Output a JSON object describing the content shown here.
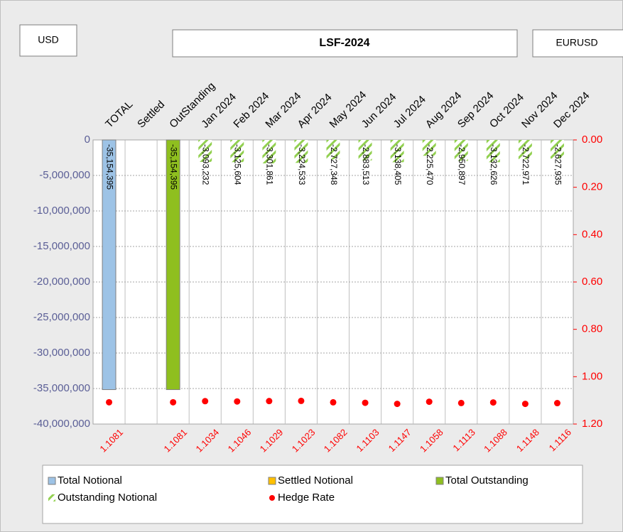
{
  "chart_data": {
    "type": "bar",
    "title": "LSF-2024",
    "annotations": [
      "USD",
      "EURUSD"
    ],
    "categories": [
      "TOTAL",
      "Settled",
      "OutStanding",
      "Jan 2024",
      "Feb 2024",
      "Mar 2024",
      "Apr 2024",
      "May 2024",
      "Jun 2024",
      "Jul 2024",
      "Aug 2024",
      "Sep 2024",
      "Oct 2024",
      "Nov 2024",
      "Dec 2024"
    ],
    "series": [
      {
        "name": "Total Notional",
        "type": "bar",
        "color": "#9dc3e6",
        "values": [
          -35154395,
          null,
          null,
          null,
          null,
          null,
          null,
          null,
          null,
          null,
          null,
          null,
          null,
          null,
          null
        ],
        "value_labels": [
          "-35,154,395",
          null,
          null,
          null,
          null,
          null,
          null,
          null,
          null,
          null,
          null,
          null,
          null,
          null,
          null
        ]
      },
      {
        "name": "Settled Notional",
        "type": "bar",
        "color": "#ffc000",
        "values": [
          null,
          null,
          null,
          null,
          null,
          null,
          null,
          null,
          null,
          null,
          null,
          null,
          null,
          null,
          null
        ]
      },
      {
        "name": "Total Outstanding",
        "type": "bar",
        "color": "#8fbf1f",
        "values": [
          null,
          null,
          -35154395,
          null,
          null,
          null,
          null,
          null,
          null,
          null,
          null,
          null,
          null,
          null,
          null
        ],
        "value_labels": [
          null,
          null,
          "-35,154,395",
          null,
          null,
          null,
          null,
          null,
          null,
          null,
          null,
          null,
          null,
          null,
          null
        ]
      },
      {
        "name": "Outstanding Notional",
        "type": "bar",
        "color": "#92d050",
        "pattern": "hatch",
        "values": [
          null,
          null,
          null,
          -3093232,
          -3125604,
          -3301861,
          -3224533,
          -2727348,
          -2883513,
          -3138405,
          -2225470,
          -2950897,
          -3132626,
          -2722971,
          -2627935
        ],
        "value_labels": [
          null,
          null,
          null,
          "-3,093,232",
          "-3,125,604",
          "-3,301,861",
          "-3,224,533",
          "-2,727,348",
          "-2,883,513",
          "-3,138,405",
          "-2,225,470",
          "-2,950,897",
          "-3,132,626",
          "-2,722,971",
          "-2,627,935"
        ]
      },
      {
        "name": "Hedge Rate",
        "type": "scatter",
        "axis": "y2",
        "color": "#ff0000",
        "values": [
          1.1081,
          null,
          1.1081,
          1.1034,
          1.1046,
          1.1029,
          1.1023,
          1.1082,
          1.1103,
          1.1147,
          1.1058,
          1.1113,
          1.1088,
          1.1148,
          1.1116
        ]
      }
    ],
    "ylim": [
      -40000000,
      0
    ],
    "yticks": [
      {
        "value": -40000000,
        "label": "-40,000,000"
      },
      {
        "value": -35000000,
        "label": "-35,000,000"
      },
      {
        "value": -30000000,
        "label": "-30,000,000"
      },
      {
        "value": -25000000,
        "label": "-25,000,000"
      },
      {
        "value": -20000000,
        "label": "-20,000,000"
      },
      {
        "value": -15000000,
        "label": "-15,000,000"
      },
      {
        "value": -10000000,
        "label": "-10,000,000"
      },
      {
        "value": -5000000,
        "label": "-5,000,000"
      },
      0
    ],
    "y2lim": [
      0,
      1.2
    ],
    "y2_reversed": true,
    "y2ticks": [
      {
        "value": 0,
        "label": "0.00"
      },
      {
        "value": 0.2,
        "label": "0.20"
      },
      {
        "value": 0.4,
        "label": "0.40"
      },
      {
        "value": 0.6,
        "label": "0.60"
      },
      {
        "value": 0.8,
        "label": "0.80"
      },
      {
        "value": 1.0,
        "label": "1.00"
      },
      {
        "value": 1.2,
        "label": "1.20"
      }
    ],
    "grid": true,
    "legend": "bottom"
  }
}
